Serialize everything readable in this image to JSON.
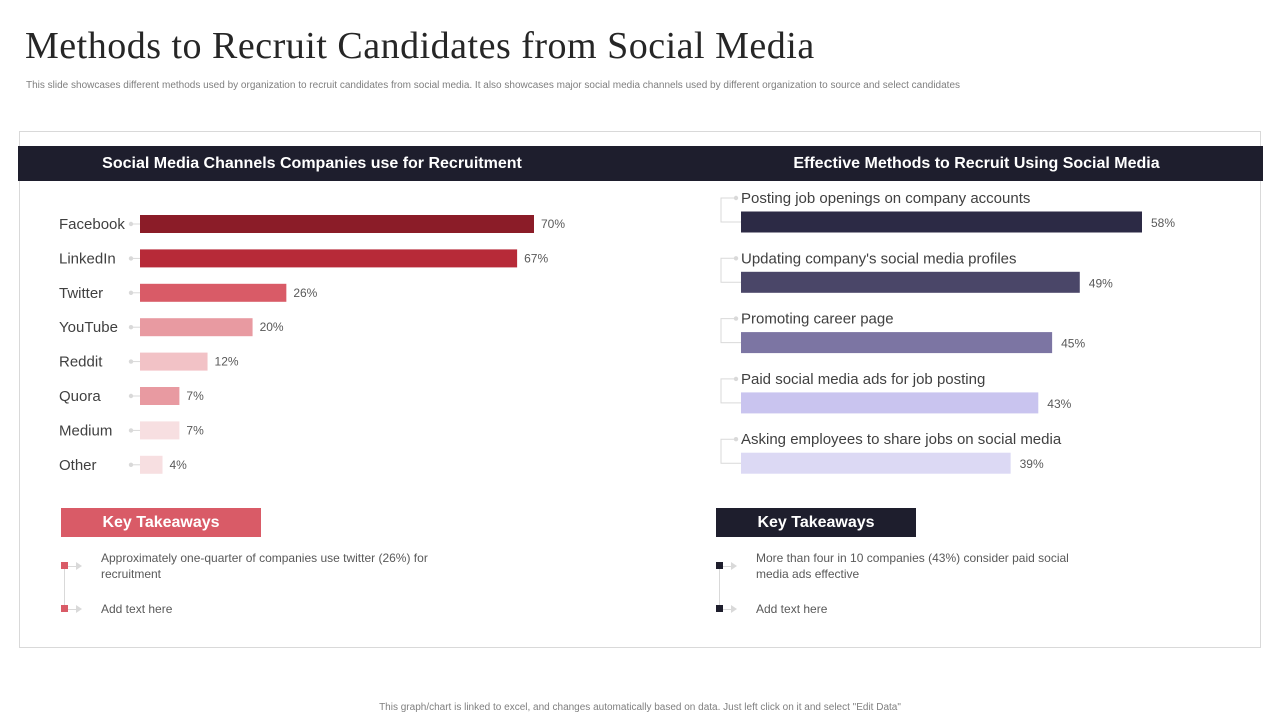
{
  "title": "Methods to Recruit Candidates from Social Media",
  "subtitle": "This slide showcases different methods used by organization to recruit candidates from social media.  It also showcases major social media  channels used by different organization to source and select candidates",
  "left_panel": {
    "header": "Social Media Channels Companies use for Recruitment"
  },
  "right_panel": {
    "header": "Effective Methods to Recruit Using Social Media"
  },
  "chart_data": [
    {
      "type": "bar",
      "orientation": "horizontal",
      "title": "Social Media Channels Companies use for Recruitment",
      "categories": [
        "Facebook",
        "LinkedIn",
        "Twitter",
        "YouTube",
        "Reddit",
        "Quora",
        "Medium",
        "Other"
      ],
      "values": [
        70,
        67,
        26,
        20,
        12,
        7,
        7,
        4
      ],
      "value_labels": [
        "70%",
        "67%",
        "26%",
        "20%",
        "12%",
        "7%",
        "7%",
        "4%"
      ],
      "colors": [
        "#8b1c28",
        "#b72a38",
        "#d95b67",
        "#e89aa1",
        "#f2c2c6",
        "#e89aa1",
        "#f7dfe1",
        "#f7dfe1"
      ],
      "unit": "%"
    },
    {
      "type": "bar",
      "orientation": "horizontal",
      "title": "Effective Methods to Recruit Using Social Media",
      "categories": [
        "Posting job openings on company accounts",
        "Updating company's social media profiles",
        "Promoting career page",
        "Paid social media ads for job posting",
        "Asking employees to share jobs on social media"
      ],
      "values": [
        58,
        49,
        45,
        43,
        39
      ],
      "value_labels": [
        "58%",
        "49%",
        "45%",
        "43%",
        "39%"
      ],
      "colors": [
        "#2c2a45",
        "#4a4668",
        "#7c75a3",
        "#c9c4ef",
        "#dcd9f4"
      ],
      "unit": "%"
    }
  ],
  "left_takeaways": {
    "header": "Key Takeaways",
    "color": "#d95b67",
    "items": [
      "Approximately one-quarter  of companies use twitter (26%) for recruitment",
      "Add text here"
    ]
  },
  "right_takeaways": {
    "header": "Key Takeaways",
    "color": "#1e1e2d",
    "items": [
      "More than four  in 10 companies (43%) consider paid social media ads effective",
      "Add text here"
    ]
  },
  "footer": "This graph/chart is linked to excel, and changes automatically based on data. Just left click on it and select \"Edit Data\""
}
